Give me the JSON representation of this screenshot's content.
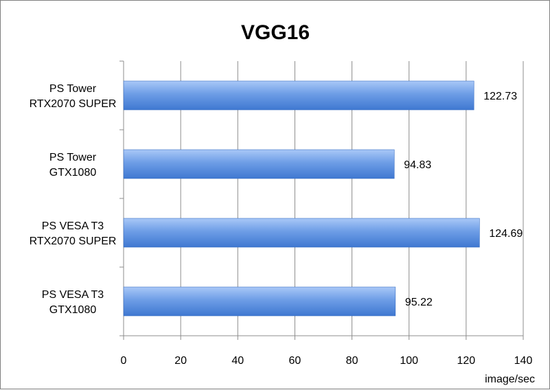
{
  "chart_data": {
    "type": "bar",
    "orientation": "horizontal",
    "title": "VGG16",
    "xlabel": "image/sec",
    "ylabel": "",
    "xlim": [
      0,
      140
    ],
    "x_ticks": [
      0,
      20,
      40,
      60,
      80,
      100,
      120,
      140
    ],
    "grid": true,
    "legend": "none",
    "bar_color": "#5b8fd9",
    "categories": [
      [
        "PS Tower",
        "RTX2070 SUPER"
      ],
      [
        "PS Tower",
        "GTX1080"
      ],
      [
        "PS VESA T3",
        "RTX2070 SUPER"
      ],
      [
        "PS VESA T3",
        "GTX1080"
      ]
    ],
    "values": [
      122.73,
      94.83,
      124.69,
      95.22
    ],
    "value_labels": [
      "122.73",
      "94.83",
      "124.69",
      "95.22"
    ]
  }
}
